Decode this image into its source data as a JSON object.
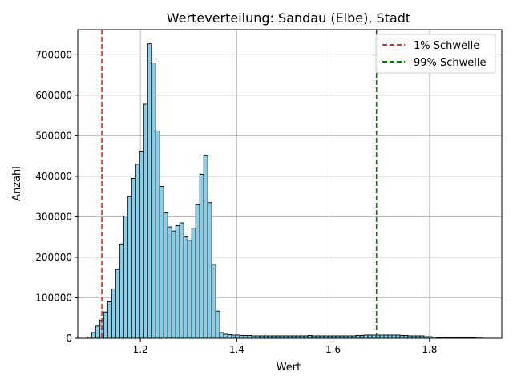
{
  "chart_data": {
    "type": "bar",
    "title": "Werteverteilung: Sandau (Elbe), Stadt",
    "xlabel": "Wert",
    "ylabel": "Anzahl",
    "xlim": [
      1.07,
      1.95
    ],
    "ylim": [
      0,
      762000
    ],
    "x_ticks": [
      {
        "value": 1.2,
        "label": "1.2"
      },
      {
        "value": 1.4,
        "label": "1.4"
      },
      {
        "value": 1.6,
        "label": "1.6"
      },
      {
        "value": 1.8,
        "label": "1.8"
      }
    ],
    "y_ticks": [
      {
        "value": 0,
        "label": "0"
      },
      {
        "value": 100000,
        "label": "100000"
      },
      {
        "value": 200000,
        "label": "200000"
      },
      {
        "value": 300000,
        "label": "300000"
      },
      {
        "value": 400000,
        "label": "400000"
      },
      {
        "value": 500000,
        "label": "500000"
      },
      {
        "value": 600000,
        "label": "600000"
      },
      {
        "value": 700000,
        "label": "700000"
      }
    ],
    "grid": true,
    "legend_position": "top-right",
    "bar_color": "#87ceeb",
    "bar_edge_color": "#000000",
    "bin_start": 1.0905,
    "bin_width": 0.00831,
    "values": [
      3000,
      14000,
      30000,
      45000,
      65000,
      90000,
      122000,
      170000,
      233000,
      302000,
      350000,
      395000,
      430000,
      462000,
      578000,
      727000,
      680000,
      512000,
      375000,
      310000,
      275000,
      265000,
      278000,
      285000,
      250000,
      242000,
      272000,
      330000,
      405000,
      452000,
      335000,
      182000,
      67000,
      14000,
      10000,
      9000,
      8000,
      8000,
      7000,
      7000,
      7000,
      6000,
      6000,
      6000,
      6000,
      6000,
      6000,
      6000,
      6000,
      6000,
      6000,
      6000,
      6000,
      6000,
      6000,
      7000,
      6000,
      6000,
      6000,
      6000,
      6000,
      6000,
      6000,
      6000,
      6000,
      6000,
      6000,
      7000,
      7000,
      8000,
      8000,
      8000,
      8000,
      8000,
      8000,
      8000,
      8000,
      8000,
      7000,
      7000,
      6000,
      6000,
      6000,
      6000,
      4000,
      4000,
      3000,
      2000,
      2000,
      2000,
      1000,
      1000,
      1000,
      1000,
      1000,
      1000,
      1000,
      500,
      500
    ],
    "threshold_lines": [
      {
        "name": "1% Schwelle",
        "x": 1.12,
        "color": "#d62728"
      },
      {
        "name": "99% Schwelle",
        "x": 1.69,
        "color": "#008000"
      }
    ]
  }
}
